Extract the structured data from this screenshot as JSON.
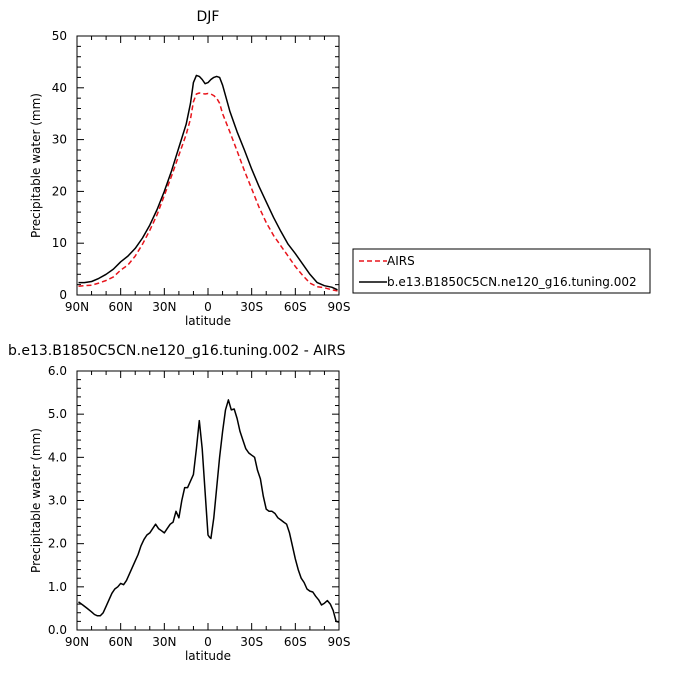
{
  "chart_data": [
    {
      "type": "line",
      "title": "DJF",
      "xlabel": "latitude",
      "ylabel": "Precipitable water (mm)",
      "xlim": [
        90,
        -90
      ],
      "ylim": [
        0,
        50
      ],
      "x_ticks": [
        90,
        60,
        30,
        0,
        -30,
        -60,
        -90
      ],
      "x_tick_labels": [
        "90N",
        "60N",
        "30N",
        "0",
        "30S",
        "60S",
        "90S"
      ],
      "y_ticks": [
        0,
        10,
        20,
        30,
        40,
        50
      ],
      "y_tick_labels": [
        "0",
        "10",
        "20",
        "30",
        "40",
        "50"
      ],
      "legend_placement": "right",
      "series": [
        {
          "name": "AIRS",
          "color": "#e8141b",
          "dash": "dashed",
          "x": [
            89,
            85,
            80,
            75,
            70,
            65,
            60,
            55,
            50,
            45,
            40,
            35,
            30,
            25,
            20,
            15,
            12,
            10,
            8,
            6,
            4,
            2,
            0,
            -2,
            -4,
            -6,
            -8,
            -10,
            -15,
            -20,
            -25,
            -30,
            -35,
            -40,
            -45,
            -50,
            -55,
            -60,
            -65,
            -70,
            -75,
            -80,
            -85,
            -89
          ],
          "y": [
            1.7,
            1.8,
            1.9,
            2.3,
            2.8,
            3.5,
            4.8,
            5.8,
            7.5,
            9.8,
            12.5,
            15.5,
            19.2,
            23.0,
            27.0,
            31.0,
            34.0,
            37.3,
            38.8,
            39.0,
            38.9,
            38.8,
            38.9,
            38.8,
            38.5,
            38.0,
            37.0,
            35.0,
            31.5,
            27.8,
            24.0,
            20.5,
            17.0,
            14.0,
            11.5,
            9.5,
            7.5,
            5.5,
            3.8,
            2.3,
            1.6,
            1.4,
            1.0,
            0.8
          ]
        },
        {
          "name": "b.e13.B1850C5CN.ne120_g16.tuning.002",
          "color": "#000000",
          "dash": "solid",
          "x": [
            89,
            85,
            80,
            75,
            70,
            65,
            60,
            55,
            50,
            45,
            40,
            35,
            30,
            25,
            20,
            15,
            12,
            10,
            8,
            6,
            4,
            2,
            0,
            -2,
            -4,
            -6,
            -8,
            -10,
            -12,
            -15,
            -20,
            -25,
            -30,
            -35,
            -40,
            -45,
            -50,
            -55,
            -60,
            -65,
            -70,
            -75,
            -80,
            -85,
            -89
          ],
          "y": [
            2.4,
            2.4,
            2.6,
            3.2,
            4.0,
            5.0,
            6.4,
            7.5,
            9.0,
            11.0,
            13.5,
            16.5,
            20.0,
            24.0,
            28.5,
            33.0,
            37.0,
            41.0,
            42.4,
            42.2,
            41.6,
            40.8,
            41.0,
            41.6,
            42.0,
            42.2,
            42.0,
            40.5,
            38.5,
            35.5,
            31.5,
            28.0,
            24.3,
            21.0,
            18.0,
            15.0,
            12.3,
            9.8,
            8.0,
            6.0,
            4.0,
            2.4,
            1.8,
            1.5,
            1.0
          ]
        }
      ]
    },
    {
      "type": "line",
      "title": "b.e13.B1850C5CN.ne120_g16.tuning.002 - AIRS",
      "xlabel": "latitude",
      "ylabel": "Precipitable water (mm)",
      "xlim": [
        90,
        -90
      ],
      "ylim": [
        0,
        6
      ],
      "x_ticks": [
        90,
        60,
        30,
        0,
        -30,
        -60,
        -90
      ],
      "x_tick_labels": [
        "90N",
        "60N",
        "30N",
        "0",
        "30S",
        "60S",
        "90S"
      ],
      "y_ticks": [
        0,
        1,
        2,
        3,
        4,
        5,
        6
      ],
      "y_tick_labels": [
        "0.0",
        "1.0",
        "2.0",
        "3.0",
        "4.0",
        "5.0",
        "6.0"
      ],
      "series": [
        {
          "color": "#000000",
          "dash": "solid",
          "x": [
            89,
            86,
            83,
            80,
            78,
            76,
            74,
            72,
            70,
            68,
            66,
            64,
            62,
            60,
            58,
            56,
            54,
            52,
            50,
            48,
            46,
            44,
            42,
            40,
            38,
            36,
            34,
            32,
            30,
            28,
            26,
            24,
            22,
            20,
            18,
            16,
            14,
            12,
            10,
            8,
            6,
            4,
            2,
            0,
            -1,
            -2,
            -4,
            -6,
            -8,
            -10,
            -12,
            -14,
            -16,
            -18,
            -20,
            -22,
            -24,
            -26,
            -28,
            -30,
            -32,
            -34,
            -36,
            -38,
            -40,
            -42,
            -44,
            -46,
            -48,
            -50,
            -52,
            -54,
            -56,
            -58,
            -60,
            -62,
            -64,
            -66,
            -68,
            -70,
            -72,
            -74,
            -76,
            -78,
            -80,
            -82,
            -84,
            -86,
            -88,
            -90
          ],
          "y": [
            0.65,
            0.58,
            0.5,
            0.42,
            0.36,
            0.33,
            0.33,
            0.4,
            0.55,
            0.7,
            0.85,
            0.95,
            1.0,
            1.08,
            1.05,
            1.15,
            1.3,
            1.45,
            1.6,
            1.75,
            1.95,
            2.1,
            2.2,
            2.25,
            2.35,
            2.45,
            2.35,
            2.3,
            2.25,
            2.35,
            2.45,
            2.5,
            2.75,
            2.6,
            3.0,
            3.3,
            3.3,
            3.45,
            3.6,
            4.2,
            4.85,
            4.2,
            3.2,
            2.2,
            2.15,
            2.12,
            2.6,
            3.3,
            4.0,
            4.6,
            5.1,
            5.33,
            5.1,
            5.12,
            4.9,
            4.6,
            4.4,
            4.2,
            4.1,
            4.05,
            4.0,
            3.7,
            3.5,
            3.1,
            2.8,
            2.75,
            2.75,
            2.7,
            2.6,
            2.55,
            2.5,
            2.45,
            2.25,
            1.95,
            1.65,
            1.4,
            1.2,
            1.1,
            0.95,
            0.9,
            0.88,
            0.78,
            0.7,
            0.58,
            0.62,
            0.68,
            0.6,
            0.45,
            0.2,
            0.18
          ]
        }
      ]
    }
  ]
}
